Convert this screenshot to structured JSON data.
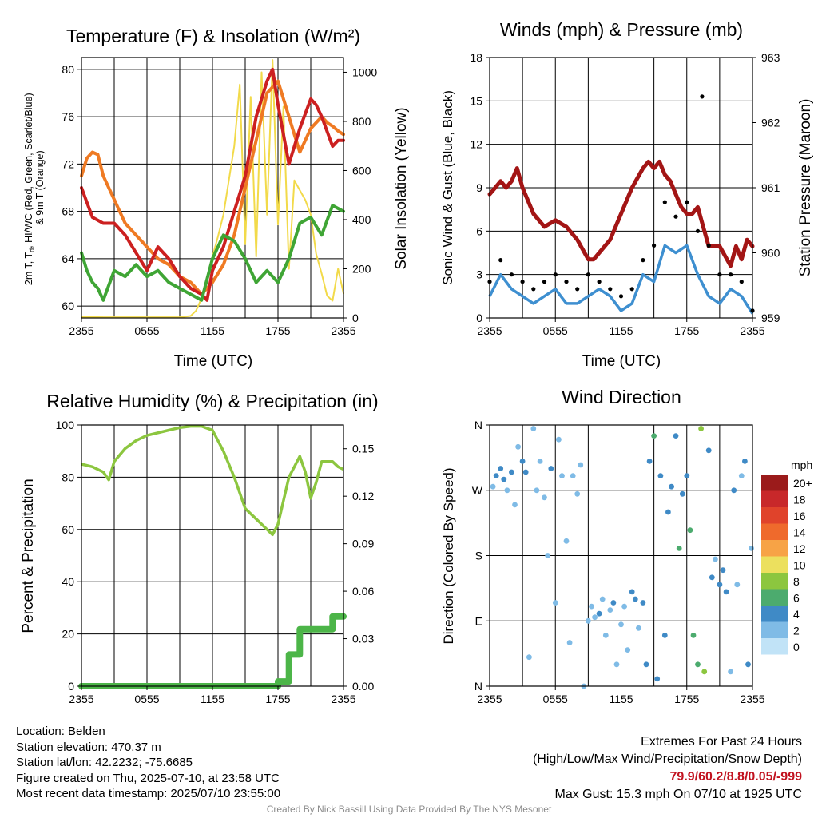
{
  "charts": {
    "temperature": {
      "title": "Temperature (F) & Insolation (W/m²)",
      "ylabel_left_lines": [
        "2m T, T",
        "d",
        ", HI/WC (Red, Green, Scarlet/Blue)",
        "& 9m T (Orange)"
      ],
      "ylabel_right": "Solar Insolation (Yellow)",
      "xlabel": "Time (UTC)"
    },
    "winds": {
      "title": "Winds (mph) & Pressure (mb)",
      "ylabel_left": "Sonic Wind & Gust (Blue, Black)",
      "ylabel_right": "Station Pressure (Maroon)",
      "xlabel": "Time (UTC)"
    },
    "humidity": {
      "title": "Relative Humidity (%) & Precipitation (in)",
      "ylabel_left": "Percent & Precipitation"
    },
    "direction": {
      "title": "Wind Direction",
      "ylabel_left": "Direction (Colored By Speed)",
      "colorbar_title": "mph",
      "colorbar_labels": [
        "20+",
        "18",
        "16",
        "14",
        "12",
        "10",
        "8",
        "6",
        "4",
        "2",
        "0"
      ]
    }
  },
  "chart_data": [
    {
      "type": "line",
      "title": "Temperature (F) & Insolation (W/m2)",
      "xlabel": "Time (UTC)",
      "x_ticks": [
        "2355",
        "0555",
        "1155",
        "1755",
        "2355"
      ],
      "xlim_hours": [
        0,
        24
      ],
      "ylim_left": [
        59,
        81
      ],
      "y_ticks_left": [
        60,
        64,
        68,
        72,
        76,
        80
      ],
      "ylim_right": [
        0,
        1060
      ],
      "y_ticks_right": [
        0,
        200,
        400,
        600,
        800,
        1000
      ],
      "grid": true,
      "series": [
        {
          "color": "#ef7a23",
          "axis": "left",
          "x_hours": [
            0,
            0.5,
            1,
            1.5,
            2,
            3,
            4,
            5,
            6,
            7,
            8,
            9,
            10,
            11,
            12,
            13,
            14,
            15,
            16,
            17,
            18,
            19,
            20,
            21,
            22,
            22.5,
            23,
            23.5,
            24
          ],
          "values": [
            71,
            72.5,
            73,
            72.8,
            71,
            69,
            67,
            66,
            65,
            64,
            63.5,
            62.5,
            62,
            61,
            62,
            63.5,
            66,
            70,
            74,
            78,
            79,
            76,
            73,
            75,
            76,
            75.5,
            75.2,
            74.8,
            74.5
          ]
        },
        {
          "color": "#cc2020",
          "axis": "left",
          "x_hours": [
            0,
            1,
            2,
            3,
            4,
            5,
            6,
            7,
            8,
            9,
            10,
            11,
            11.5,
            12,
            13,
            14,
            15,
            16,
            17,
            17.5,
            18,
            19,
            20,
            21,
            21.5,
            22,
            23,
            23.5,
            24
          ],
          "values": [
            70,
            67.5,
            67,
            67,
            66,
            64.5,
            63,
            65,
            64,
            62.5,
            61.5,
            61,
            60.5,
            63,
            65,
            68,
            71,
            76,
            79,
            80,
            77,
            72,
            75,
            77.5,
            77,
            76,
            73.5,
            74,
            74
          ]
        },
        {
          "color": "#3fa535",
          "axis": "left",
          "x_hours": [
            0,
            0.5,
            1,
            1.5,
            2,
            3,
            4,
            5,
            6,
            7,
            8,
            9,
            10,
            11,
            12,
            13,
            14,
            15,
            16,
            17,
            18,
            19,
            20,
            21,
            22,
            23,
            24
          ],
          "values": [
            64.5,
            63,
            62,
            61.5,
            60.5,
            63,
            62.5,
            63.5,
            62.5,
            63,
            62,
            61.5,
            61,
            60.5,
            64,
            66,
            65.5,
            64,
            62,
            63,
            62,
            64,
            67,
            67.5,
            66,
            68.5,
            68
          ]
        },
        {
          "color": "#f2da4a",
          "axis": "right",
          "x_hours": [
            0,
            2,
            4,
            6,
            8,
            9,
            10,
            10.5,
            11,
            11.5,
            12,
            12.5,
            13,
            13.5,
            14,
            14.5,
            15,
            15.5,
            16,
            16.5,
            17,
            17.5,
            18,
            18.5,
            19,
            19.5,
            20,
            20.5,
            21,
            21.5,
            22,
            22.5,
            23,
            23.5,
            24
          ],
          "values": [
            5,
            3,
            3,
            3,
            3,
            3,
            8,
            30,
            80,
            160,
            250,
            330,
            420,
            560,
            700,
            950,
            300,
            900,
            250,
            1000,
            420,
            1050,
            380,
            860,
            200,
            560,
            520,
            480,
            420,
            260,
            180,
            90,
            70,
            200,
            100
          ]
        }
      ]
    },
    {
      "type": "line",
      "title": "Winds (mph) & Pressure (mb)",
      "xlabel": "Time (UTC)",
      "x_ticks": [
        "2355",
        "0555",
        "1155",
        "1755",
        "2355"
      ],
      "xlim_hours": [
        0,
        24
      ],
      "ylim_left": [
        0,
        18
      ],
      "y_ticks_left": [
        0,
        3,
        6,
        9,
        12,
        15,
        18
      ],
      "ylim_right": [
        959,
        963
      ],
      "y_ticks_right": [
        959,
        960,
        961,
        962,
        963
      ],
      "grid": true,
      "series": [
        {
          "color": "#a31515",
          "axis": "right",
          "x_hours": [
            0,
            0.5,
            1,
            1.5,
            2,
            2.5,
            3,
            3.5,
            4,
            5,
            6,
            7,
            8,
            9,
            9.5,
            10,
            11,
            12,
            13,
            14,
            14.5,
            15,
            15.5,
            16,
            16.5,
            17,
            17.5,
            18,
            18.5,
            19,
            19.5,
            20,
            21,
            22,
            22.5,
            23,
            23.5,
            24
          ],
          "values": [
            960.9,
            961,
            961.1,
            961,
            961.1,
            961.3,
            961,
            960.8,
            960.6,
            960.4,
            960.5,
            960.4,
            960.2,
            959.9,
            959.9,
            960,
            960.2,
            960.6,
            961,
            961.3,
            961.4,
            961.3,
            961.4,
            961.2,
            961.1,
            960.9,
            960.7,
            960.6,
            960.6,
            960.7,
            960.4,
            960.1,
            960.1,
            959.8,
            960.1,
            959.9,
            960.2,
            960.1
          ]
        },
        {
          "color": "#3e8fd0",
          "axis": "left",
          "x_hours": [
            0,
            1,
            2,
            3,
            4,
            5,
            6,
            7,
            8,
            9,
            10,
            11,
            12,
            13,
            14,
            15,
            16,
            17,
            18,
            19,
            20,
            21,
            22,
            23,
            24
          ],
          "values": [
            1.5,
            3,
            2,
            1.5,
            1,
            1.5,
            2,
            1,
            1,
            1.5,
            2,
            1.5,
            0.5,
            1,
            3,
            2.5,
            5,
            4.5,
            5,
            3,
            1.5,
            1,
            2,
            1.5,
            0.3
          ]
        },
        {
          "color": "#000000",
          "axis": "left",
          "mode": "markers",
          "x_hours": [
            0,
            1,
            2,
            3,
            4,
            5,
            6,
            7,
            8,
            9,
            10,
            11,
            12,
            13,
            14,
            15,
            16,
            17,
            18,
            19,
            19.4,
            20,
            21,
            22,
            23,
            24
          ],
          "values": [
            2.5,
            4,
            3,
            2.5,
            2,
            2.5,
            3,
            2.5,
            2,
            3,
            2.5,
            2,
            1.5,
            2,
            4,
            5,
            8,
            7,
            8,
            6,
            15.3,
            5,
            3,
            3,
            2.5,
            0.5
          ]
        }
      ]
    },
    {
      "type": "line",
      "title": "Relative Humidity (%) & Precipitation (in)",
      "x_ticks": [
        "2355",
        "0555",
        "1155",
        "1755",
        "2355"
      ],
      "xlim_hours": [
        0,
        24
      ],
      "ylim_left": [
        0,
        100
      ],
      "y_ticks_left": [
        0,
        20,
        40,
        60,
        80,
        100
      ],
      "ylim_right": [
        0,
        0.165
      ],
      "y_ticks_right": [
        "0.00",
        "0.03",
        "0.06",
        "0.09",
        "0.12",
        "0.15"
      ],
      "grid": true,
      "series": [
        {
          "color": "#8cc63f",
          "axis": "left",
          "x_hours": [
            0,
            1,
            2,
            2.5,
            3,
            4,
            5,
            6,
            7,
            8,
            9,
            10,
            11,
            12,
            13,
            14,
            15,
            16,
            17,
            17.5,
            18,
            19,
            20,
            20.5,
            21,
            21.5,
            22,
            23,
            23.5,
            24
          ],
          "values": [
            85,
            84,
            82,
            79,
            86,
            91,
            94,
            96,
            97,
            98,
            99,
            99.5,
            99.5,
            98,
            90,
            80,
            68,
            64,
            60,
            58,
            62,
            80,
            88,
            82,
            72,
            78,
            86,
            86,
            84,
            83
          ]
        },
        {
          "color": "#4cb548",
          "axis": "right",
          "x_hours": [
            0,
            17.5,
            18,
            18.5,
            19,
            19.5,
            20,
            21,
            22,
            23,
            24
          ],
          "values": [
            0,
            0,
            0.003,
            0.003,
            0.02,
            0.02,
            0.036,
            0.036,
            0.036,
            0.044,
            0.044
          ]
        }
      ]
    },
    {
      "type": "scatter",
      "title": "Wind Direction",
      "ylabel": "Direction (Colored By Speed)",
      "x_ticks": [
        "2355",
        "0555",
        "1155",
        "1755",
        "2355"
      ],
      "xlim_hours": [
        0,
        24
      ],
      "y_ticks": [
        "N",
        "E",
        "S",
        "W",
        "N"
      ],
      "ylim_deg": [
        0,
        360
      ],
      "colorbar": {
        "title": "mph",
        "labels": [
          "20+",
          "18",
          "16",
          "14",
          "12",
          "10",
          "8",
          "6",
          "4",
          "2",
          "0"
        ],
        "colors": [
          "#9b1b1b",
          "#c8282a",
          "#e0432b",
          "#ef6a2c",
          "#f7a346",
          "#ece05e",
          "#8cc63f",
          "#4cab6e",
          "#3f8ac6",
          "#7fbbe6",
          "#c1e3f7"
        ]
      },
      "points": [
        {
          "t": 0.3,
          "dir": 275,
          "mph": 2
        },
        {
          "t": 0.6,
          "dir": 290,
          "mph": 3
        },
        {
          "t": 1.0,
          "dir": 300,
          "mph": 4
        },
        {
          "t": 1.3,
          "dir": 285,
          "mph": 3
        },
        {
          "t": 1.6,
          "dir": 270,
          "mph": 2
        },
        {
          "t": 2.0,
          "dir": 295,
          "mph": 4
        },
        {
          "t": 2.3,
          "dir": 250,
          "mph": 2
        },
        {
          "t": 2.6,
          "dir": 330,
          "mph": 1
        },
        {
          "t": 3.0,
          "dir": 310,
          "mph": 3
        },
        {
          "t": 3.3,
          "dir": 295,
          "mph": 4
        },
        {
          "t": 3.6,
          "dir": 40,
          "mph": 1
        },
        {
          "t": 4.0,
          "dir": 355,
          "mph": 1
        },
        {
          "t": 4.3,
          "dir": 270,
          "mph": 2
        },
        {
          "t": 4.6,
          "dir": 310,
          "mph": 2
        },
        {
          "t": 5.0,
          "dir": 260,
          "mph": 2
        },
        {
          "t": 5.3,
          "dir": 180,
          "mph": 1
        },
        {
          "t": 5.6,
          "dir": 300,
          "mph": 3
        },
        {
          "t": 6.0,
          "dir": 115,
          "mph": 1
        },
        {
          "t": 6.3,
          "dir": 340,
          "mph": 1
        },
        {
          "t": 6.6,
          "dir": 290,
          "mph": 2
        },
        {
          "t": 7.0,
          "dir": 200,
          "mph": 1
        },
        {
          "t": 7.3,
          "dir": 60,
          "mph": 2
        },
        {
          "t": 7.6,
          "dir": 290,
          "mph": 2
        },
        {
          "t": 8.0,
          "dir": 265,
          "mph": 1
        },
        {
          "t": 8.3,
          "dir": 305,
          "mph": 2
        },
        {
          "t": 8.6,
          "dir": 0,
          "mph": 1
        },
        {
          "t": 9.0,
          "dir": 90,
          "mph": 1
        },
        {
          "t": 9.3,
          "dir": 110,
          "mph": 2
        },
        {
          "t": 9.6,
          "dir": 95,
          "mph": 2
        },
        {
          "t": 10.0,
          "dir": 100,
          "mph": 3
        },
        {
          "t": 10.3,
          "dir": 120,
          "mph": 2
        },
        {
          "t": 10.6,
          "dir": 70,
          "mph": 1
        },
        {
          "t": 11.0,
          "dir": 105,
          "mph": 2
        },
        {
          "t": 11.3,
          "dir": 115,
          "mph": 3
        },
        {
          "t": 11.6,
          "dir": 30,
          "mph": 1
        },
        {
          "t": 12.0,
          "dir": 85,
          "mph": 2
        },
        {
          "t": 12.3,
          "dir": 110,
          "mph": 2
        },
        {
          "t": 12.6,
          "dir": 50,
          "mph": 2
        },
        {
          "t": 13.0,
          "dir": 130,
          "mph": 3
        },
        {
          "t": 13.3,
          "dir": 120,
          "mph": 3
        },
        {
          "t": 13.6,
          "dir": 80,
          "mph": 2
        },
        {
          "t": 14.0,
          "dir": 115,
          "mph": 3
        },
        {
          "t": 14.3,
          "dir": 30,
          "mph": 4
        },
        {
          "t": 14.6,
          "dir": 310,
          "mph": 4
        },
        {
          "t": 15.0,
          "dir": 345,
          "mph": 5
        },
        {
          "t": 15.3,
          "dir": 10,
          "mph": 4
        },
        {
          "t": 15.6,
          "dir": 290,
          "mph": 3
        },
        {
          "t": 16.0,
          "dir": 70,
          "mph": 4
        },
        {
          "t": 16.3,
          "dir": 240,
          "mph": 4
        },
        {
          "t": 16.6,
          "dir": 275,
          "mph": 4
        },
        {
          "t": 17.0,
          "dir": 345,
          "mph": 4
        },
        {
          "t": 17.3,
          "dir": 190,
          "mph": 5
        },
        {
          "t": 17.6,
          "dir": 265,
          "mph": 4
        },
        {
          "t": 18.0,
          "dir": 290,
          "mph": 3
        },
        {
          "t": 18.3,
          "dir": 215,
          "mph": 5
        },
        {
          "t": 18.6,
          "dir": 70,
          "mph": 6
        },
        {
          "t": 19.0,
          "dir": 30,
          "mph": 6
        },
        {
          "t": 19.3,
          "dir": 355,
          "mph": 7
        },
        {
          "t": 19.6,
          "dir": 20,
          "mph": 7
        },
        {
          "t": 20.0,
          "dir": 325,
          "mph": 4
        },
        {
          "t": 20.3,
          "dir": 150,
          "mph": 3
        },
        {
          "t": 20.6,
          "dir": 175,
          "mph": 2
        },
        {
          "t": 21.0,
          "dir": 140,
          "mph": 4
        },
        {
          "t": 21.3,
          "dir": 160,
          "mph": 3
        },
        {
          "t": 21.6,
          "dir": 130,
          "mph": 3
        },
        {
          "t": 22.0,
          "dir": 20,
          "mph": 2
        },
        {
          "t": 22.3,
          "dir": 270,
          "mph": 3
        },
        {
          "t": 22.6,
          "dir": 140,
          "mph": 2
        },
        {
          "t": 23.0,
          "dir": 290,
          "mph": 2
        },
        {
          "t": 23.3,
          "dir": 310,
          "mph": 3
        },
        {
          "t": 23.6,
          "dir": 30,
          "mph": 3
        },
        {
          "t": 23.9,
          "dir": 190,
          "mph": 1
        }
      ]
    }
  ],
  "footer": {
    "location": "Location: Belden",
    "elevation": "Station elevation: 470.37 m",
    "latlon": "Station lat/lon: 42.2232; -75.6685",
    "created": "Figure created on Thu, 2025-07-10, at 23:58 UTC",
    "recent": "Most recent data timestamp: 2025/07/10 23:55:00",
    "extremes_title": "Extremes For Past 24 Hours",
    "extremes_subtitle": "(High/Low/Max Wind/Precipitation/Snow Depth)",
    "extremes_values": "79.9/60.2/8.8/0.05/-999",
    "max_gust": "Max Gust: 15.3 mph On 07/10 at 1925 UTC",
    "credit": "Created By Nick Bassill Using Data Provided By The NYS Mesonet"
  }
}
